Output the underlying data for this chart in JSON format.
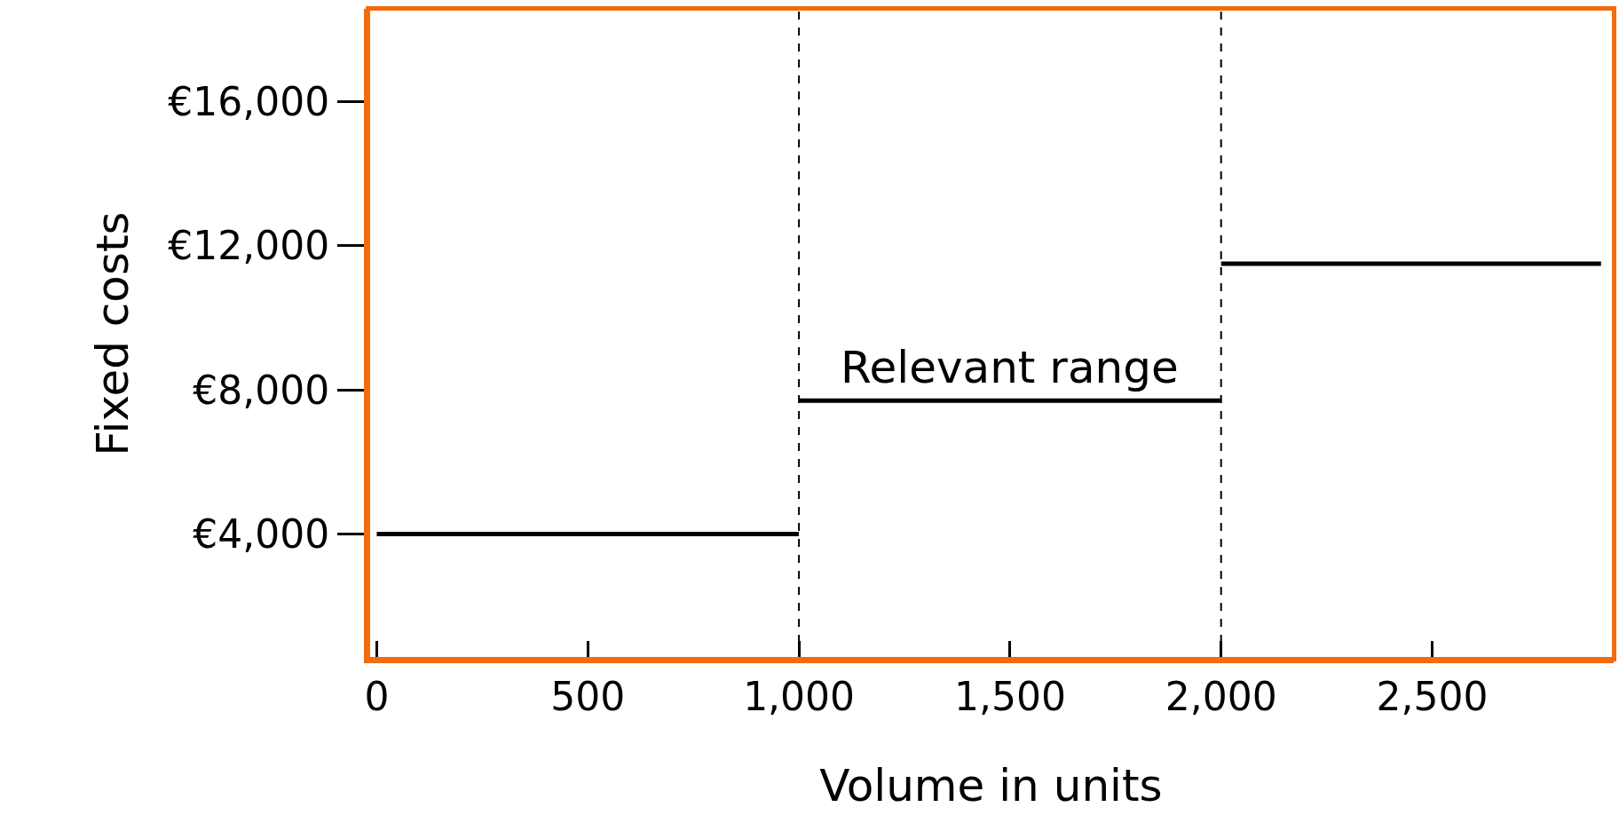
{
  "chart_data": {
    "type": "line",
    "xlabel": "Volume in units",
    "ylabel": "Fixed costs",
    "series": [
      {
        "color": "#000000",
        "x": [
          0,
          1000
        ],
        "values": [
          4000,
          4000
        ]
      },
      {
        "color": "#000000",
        "x": [
          1000,
          2000
        ],
        "values": [
          7700,
          7700
        ]
      },
      {
        "color": "#000000",
        "x": [
          2000,
          2900
        ],
        "values": [
          11500,
          11500
        ]
      }
    ],
    "xlim": [
      -20,
      2930
    ],
    "xticks": [
      0,
      {
        "value": 500,
        "label": "500"
      },
      {
        "value": 1000,
        "label": "1,000"
      },
      {
        "value": 1500,
        "label": "1,500"
      },
      {
        "value": 2000,
        "label": "2,000"
      },
      {
        "value": 2500,
        "label": "2,500"
      }
    ],
    "ylim": [
      540,
      18570
    ],
    "yticks": [
      {
        "value": 4000,
        "label": "€4,000"
      },
      {
        "value": 8000,
        "label": "€8,000"
      },
      {
        "value": 12000,
        "label": "€12,000"
      },
      {
        "value": 16000,
        "label": "€16,000"
      }
    ],
    "ref_lines": [
      {
        "axis": "x",
        "value": 1000,
        "line_style": "dashed",
        "color": "#000000"
      },
      {
        "axis": "x",
        "value": 2000,
        "line_style": "dashed",
        "color": "#000000"
      }
    ],
    "annotations": [
      {
        "text": "Relevant range",
        "x": 1500,
        "y": 7700
      }
    ],
    "grid": false,
    "line_style": "solid"
  }
}
